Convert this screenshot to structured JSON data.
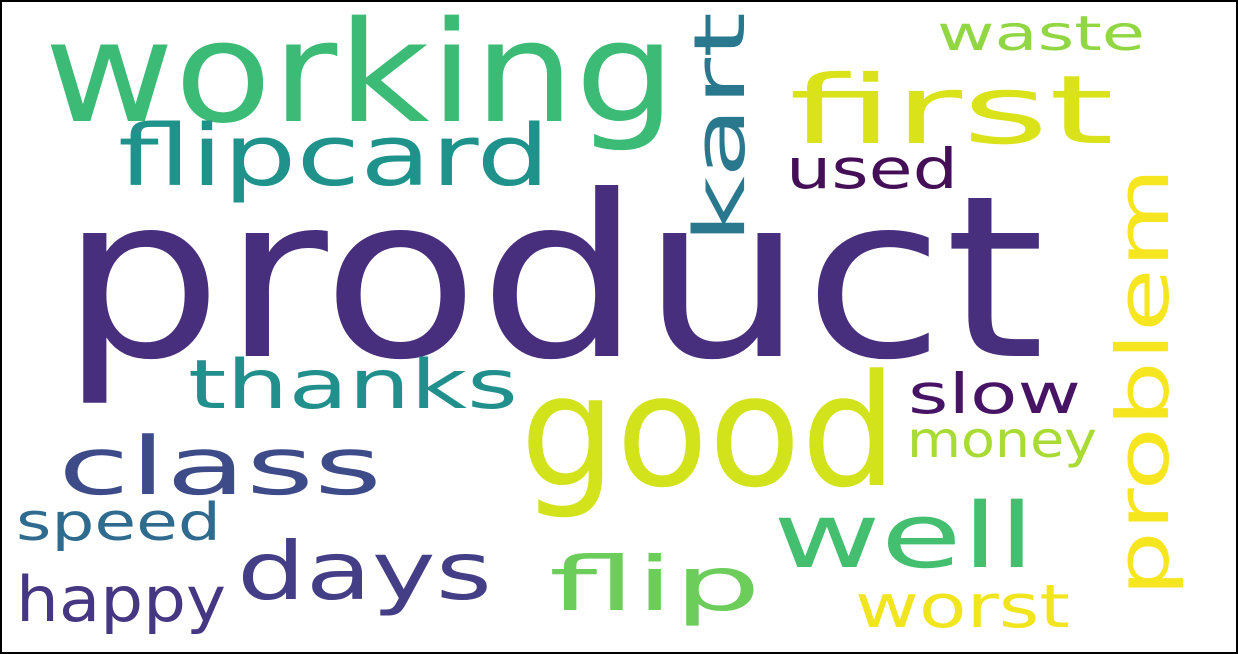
{
  "words": [
    {
      "text": "product",
      "color": "#482f7e",
      "orientation": "horizontal"
    },
    {
      "text": "working",
      "color": "#3bbb75",
      "orientation": "horizontal"
    },
    {
      "text": "good",
      "color": "#d2e21b",
      "orientation": "horizontal"
    },
    {
      "text": "problem",
      "color": "#f6e620",
      "orientation": "vertical"
    },
    {
      "text": "kart",
      "color": "#2a788e",
      "orientation": "vertical"
    },
    {
      "text": "first",
      "color": "#dae319",
      "orientation": "horizontal"
    },
    {
      "text": "flipcard",
      "color": "#20928c",
      "orientation": "horizontal"
    },
    {
      "text": "class",
      "color": "#3e4b89",
      "orientation": "horizontal"
    },
    {
      "text": "thanks",
      "color": "#21908d",
      "orientation": "horizontal"
    },
    {
      "text": "days",
      "color": "#433e85",
      "orientation": "horizontal"
    },
    {
      "text": "well",
      "color": "#44bf70",
      "orientation": "horizontal"
    },
    {
      "text": "flip",
      "color": "#6ccd5a",
      "orientation": "horizontal"
    },
    {
      "text": "worst",
      "color": "#f1e51d",
      "orientation": "horizontal"
    },
    {
      "text": "waste",
      "color": "#90d743",
      "orientation": "horizontal"
    },
    {
      "text": "used",
      "color": "#440f57",
      "orientation": "horizontal"
    },
    {
      "text": "slow",
      "color": "#471365",
      "orientation": "horizontal"
    },
    {
      "text": "money",
      "color": "#a8db34",
      "orientation": "horizontal"
    },
    {
      "text": "speed",
      "color": "#2f6b8e",
      "orientation": "horizontal"
    },
    {
      "text": "happy",
      "color": "#453781",
      "orientation": "horizontal"
    }
  ]
}
